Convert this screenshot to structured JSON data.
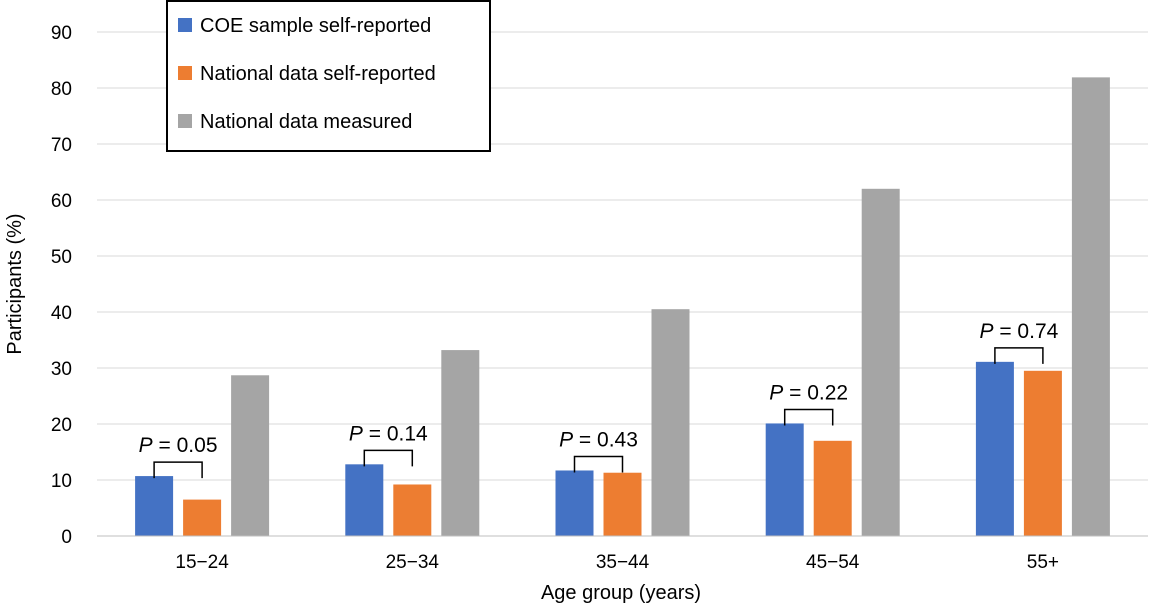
{
  "chart_data": {
    "type": "bar",
    "title": "",
    "xlabel": "Age group (years)",
    "ylabel": "Participants (%)",
    "ylim": [
      0,
      90
    ],
    "yticks": [
      0,
      10,
      20,
      30,
      40,
      50,
      60,
      70,
      80,
      90
    ],
    "grid": true,
    "legend_position": "top-left",
    "categories": [
      "15−24",
      "25−34",
      "35−44",
      "45−54",
      "55+"
    ],
    "series": [
      {
        "name": "COE sample self-reported",
        "color": "#4472C4",
        "values": [
          10.7,
          12.8,
          11.7,
          20.1,
          31.1
        ]
      },
      {
        "name": "National data self-reported",
        "color": "#ED7D31",
        "values": [
          6.5,
          9.2,
          11.3,
          17.0,
          29.5
        ]
      },
      {
        "name": "National data measured",
        "color": "#A5A5A5",
        "values": [
          28.7,
          33.2,
          40.5,
          62.0,
          81.9
        ]
      }
    ],
    "p_values": [
      {
        "category": "15−24",
        "label": "P",
        "text": " = 0.05"
      },
      {
        "category": "25−34",
        "label": "P",
        "text": " = 0.14"
      },
      {
        "category": "35−44",
        "label": "P",
        "text": " = 0.43"
      },
      {
        "category": "45−54",
        "label": "P",
        "text": " = 0.22"
      },
      {
        "category": "55+",
        "label": "P",
        "text": " = 0.74"
      }
    ]
  }
}
